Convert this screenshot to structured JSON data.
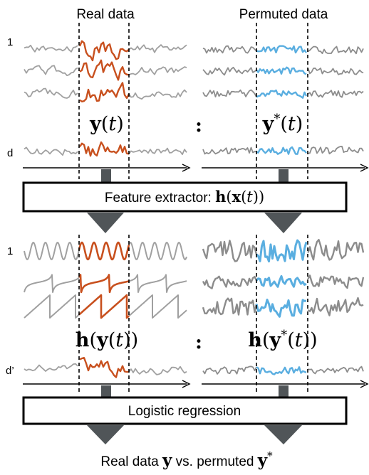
{
  "headers": {
    "real": "Real data",
    "permuted": "Permuted data"
  },
  "row_labels": {
    "top_first": "1",
    "top_last": "d",
    "bottom_first": "1",
    "bottom_last": "d’"
  },
  "math_labels": {
    "y": "y",
    "t_open": "(",
    "t": "t",
    "t_close": ")",
    "star": "*",
    "h": "h",
    "x": "x",
    "colon": ":"
  },
  "boxes": {
    "feature_prefix": "Feature extractor: ",
    "logistic": "Logistic regression"
  },
  "bottom_caption": {
    "part1": "Real data ",
    "y": "y",
    "part2": " vs. permuted ",
    "y_star": "y",
    "star": "*"
  },
  "colors": {
    "real_highlight": "#c8501e",
    "perm_highlight": "#5aaee0",
    "trace_gray": "#a0a0a0",
    "perm_gray": "#8c8c8c",
    "arrow_dark": "#505558"
  }
}
